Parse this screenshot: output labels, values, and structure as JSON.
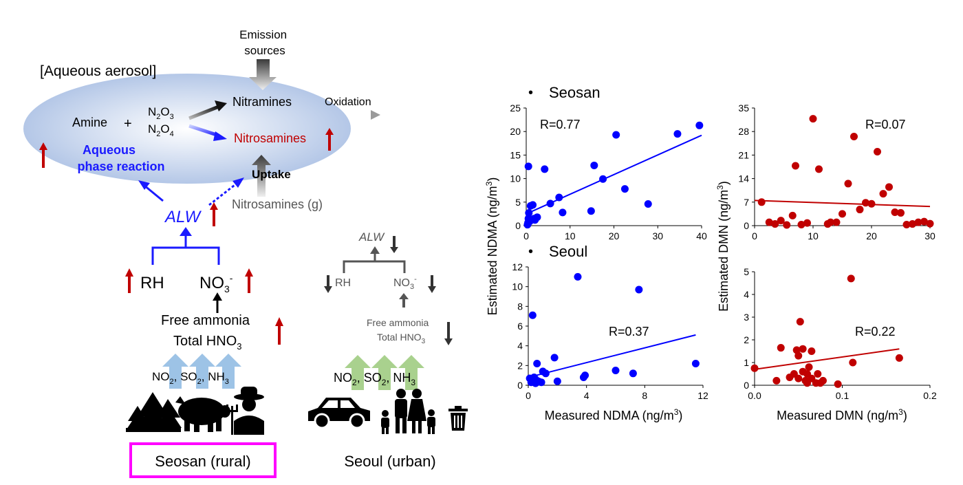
{
  "schematic": {
    "emission_sources": [
      "Emission",
      "sources"
    ],
    "aqueous_aerosol_label": "[Aqueous aerosol]",
    "amine": "Amine",
    "plus": "+",
    "n2o3": [
      "N",
      "2",
      "O",
      "3"
    ],
    "n2o4": [
      "N",
      "2",
      "O",
      "4"
    ],
    "nitramines": "Nitramines",
    "oxidation": "Oxidation",
    "nitrosamines": "Nitrosamines",
    "aqueous_phase_reaction": [
      "Aqueous",
      "phase reaction"
    ],
    "uptake": "Uptake",
    "nitrosamines_gas": "Nitrosamines (g)",
    "alw": "ALW",
    "rh": "RH",
    "no3": [
      "NO",
      "3",
      "-"
    ],
    "free_ammonia": "Free ammonia",
    "total_hno3": [
      "Total HNO",
      "3"
    ],
    "gases": [
      "NO",
      "2",
      ", SO",
      "2",
      ", NH",
      "3"
    ],
    "seosan_label": "Seosan (rural)",
    "seoul_label": "Seoul (urban)",
    "colors": {
      "red_arrow": "#c00000",
      "blue": "#0000ff",
      "ellipse": "#b4c7e7",
      "highlight_box": "#ff00ff",
      "gas_arrow_rural": "#9dc3e6",
      "gas_arrow_urban": "#a9d18e",
      "nitrosamine_text": "#c00000"
    }
  },
  "charts": {
    "section_seosan": "Seosan",
    "section_seoul": "Seoul",
    "bullet": "•",
    "ylabel_left": "Estimated NDMA (ng/m3)",
    "ylabel_right": "Estimated DMN (ng/m3)",
    "xlabel_left": "Measured NDMA (ng/m3)",
    "xlabel_right": "Measured DMN (ng/m3)"
  },
  "chart_data": [
    {
      "type": "scatter",
      "name": "seosan-ndma",
      "title": "Seosan NDMA",
      "xlabel": "Measured NDMA (ng/m3)",
      "ylabel": "Estimated NDMA (ng/m3)",
      "xlim": [
        0,
        40
      ],
      "ylim": [
        0,
        25
      ],
      "xticks": [
        0,
        10,
        20,
        30,
        40
      ],
      "yticks": [
        0,
        5,
        10,
        15,
        20,
        25
      ],
      "r_label": "R=0.77",
      "color": "#0000ff",
      "fit": [
        [
          0,
          2.5
        ],
        [
          40,
          19.2
        ]
      ],
      "x": [
        0.5,
        0.6,
        1.0,
        1.5,
        2.0,
        0.3,
        0.4,
        0.8,
        0.5,
        1.2,
        1.8,
        2.5,
        4.2,
        5.5,
        7.5,
        8.3,
        14.8,
        15.5,
        17.5,
        20.5,
        22.5,
        27.8,
        34.5,
        39.5
      ],
      "y": [
        12.6,
        2.7,
        4.2,
        4.4,
        1.2,
        0.2,
        0.6,
        0.9,
        1.5,
        1.3,
        1.5,
        1.8,
        12.0,
        4.7,
        6.0,
        2.8,
        3.1,
        12.8,
        9.9,
        19.3,
        7.8,
        4.6,
        19.5,
        21.3
      ]
    },
    {
      "type": "scatter",
      "name": "seosan-dmn",
      "title": "Seosan DMN",
      "xlabel": "Measured DMN (ng/m3)",
      "ylabel": "Estimated DMN (ng/m3)",
      "xlim": [
        0,
        30
      ],
      "ylim": [
        0,
        35
      ],
      "xticks": [
        0,
        10,
        20,
        30
      ],
      "yticks": [
        0,
        7,
        14,
        21,
        28,
        35
      ],
      "r_label": "R=0.07",
      "color": "#c00000",
      "fit": [
        [
          0,
          7.5
        ],
        [
          30,
          5.7
        ]
      ],
      "x": [
        1.2,
        2.5,
        3.5,
        4.5,
        5.5,
        6.5,
        7.0,
        8.0,
        9.0,
        10.0,
        11.0,
        12.5,
        13.0,
        14.0,
        15.0,
        16.0,
        17.0,
        18.0,
        19.0,
        20.0,
        21.0,
        22.0,
        23.0,
        24.0,
        25.0,
        26.0,
        27.0,
        28.0,
        29.0,
        30.0
      ],
      "y": [
        7.0,
        1.0,
        0.5,
        1.5,
        0.2,
        3.0,
        17.8,
        0.3,
        0.8,
        31.8,
        16.8,
        0.5,
        1.0,
        1.0,
        3.5,
        12.5,
        26.5,
        4.8,
        6.8,
        6.5,
        22.0,
        9.5,
        11.5,
        4.0,
        3.8,
        0.3,
        0.5,
        1.0,
        1.2,
        0.6
      ]
    },
    {
      "type": "scatter",
      "name": "seoul-ndma",
      "title": "Seoul NDMA",
      "xlabel": "Measured NDMA (ng/m3)",
      "ylabel": "Estimated NDMA (ng/m3)",
      "xlim": [
        0,
        12
      ],
      "ylim": [
        0,
        12
      ],
      "xticks": [
        0,
        4,
        8,
        12
      ],
      "yticks": [
        0,
        2,
        4,
        6,
        8,
        10,
        12
      ],
      "r_label": "R=0.37",
      "color": "#0000ff",
      "fit": [
        [
          0,
          0.8
        ],
        [
          11.5,
          5.1
        ]
      ],
      "x": [
        0.1,
        0.2,
        0.3,
        0.3,
        0.4,
        0.5,
        0.5,
        0.6,
        0.7,
        0.9,
        1.0,
        1.2,
        1.8,
        2.0,
        3.4,
        3.8,
        3.9,
        6.0,
        7.2,
        7.6,
        11.5
      ],
      "y": [
        0.7,
        0.3,
        7.1,
        0.5,
        0.8,
        0.2,
        0.6,
        2.2,
        0.4,
        0.3,
        1.4,
        1.2,
        2.8,
        0.4,
        11.0,
        0.8,
        1.0,
        1.5,
        1.2,
        9.7,
        2.2
      ]
    },
    {
      "type": "scatter",
      "name": "seoul-dmn",
      "title": "Seoul DMN",
      "xlabel": "Measured DMN (ng/m3)",
      "ylabel": "Estimated DMN (ng/m3)",
      "xlim": [
        0,
        0.2
      ],
      "ylim": [
        0,
        5
      ],
      "xticks": [
        0,
        0.1,
        0.2
      ],
      "xtick_labels": [
        "0.0",
        "0.1",
        "0.2"
      ],
      "yticks": [
        0,
        1,
        2,
        3,
        4,
        5
      ],
      "r_label": "R=0.22",
      "color": "#c00000",
      "fit": [
        [
          0,
          0.7
        ],
        [
          0.165,
          1.6
        ]
      ],
      "x": [
        0.0,
        0.025,
        0.03,
        0.04,
        0.045,
        0.048,
        0.05,
        0.05,
        0.052,
        0.055,
        0.055,
        0.058,
        0.06,
        0.06,
        0.062,
        0.065,
        0.065,
        0.07,
        0.072,
        0.075,
        0.078,
        0.095,
        0.11,
        0.112,
        0.165
      ],
      "y": [
        0.75,
        0.2,
        1.65,
        0.35,
        0.5,
        1.55,
        1.3,
        0.3,
        2.8,
        0.6,
        1.6,
        0.2,
        0.5,
        0.1,
        0.8,
        0.3,
        1.5,
        0.1,
        0.5,
        0.1,
        0.2,
        0.05,
        4.7,
        1.0,
        1.2
      ]
    }
  ]
}
